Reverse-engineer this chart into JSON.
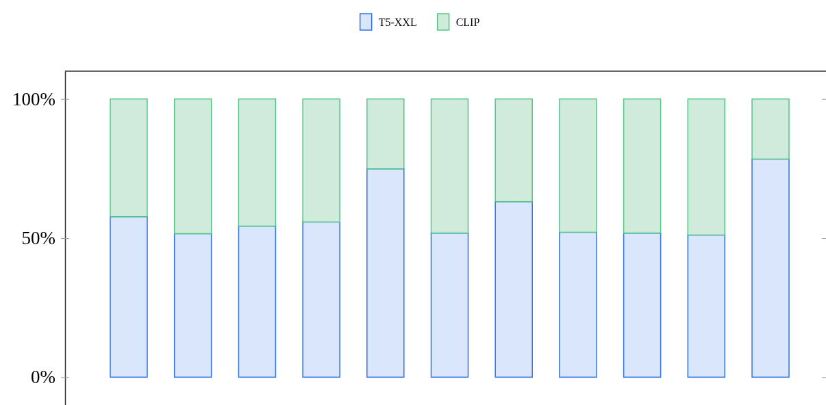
{
  "chart_data": {
    "type": "bar",
    "stacked": true,
    "categories": [
      null,
      null,
      null,
      null,
      null,
      null,
      null,
      null,
      null,
      null,
      null
    ],
    "series": [
      {
        "name": "T5-XXL",
        "color": "#dae6fb",
        "values": [
          57.7,
          51.6,
          54.3,
          55.8,
          74.9,
          51.8,
          63.1,
          52.1,
          51.8,
          51.1,
          78.4
        ]
      },
      {
        "name": "CLIP",
        "color": "#d0ebdc",
        "values": [
          42.3,
          48.4,
          45.7,
          44.2,
          25.1,
          48.2,
          36.9,
          47.9,
          48.2,
          48.9,
          21.6
        ]
      }
    ],
    "ylim": [
      -10,
      110
    ],
    "yticks": [
      {
        "value": 0,
        "label": "0%"
      },
      {
        "value": 50,
        "label": "50%"
      },
      {
        "value": 100,
        "label": "100%"
      }
    ],
    "grid": false,
    "legend": "top"
  }
}
